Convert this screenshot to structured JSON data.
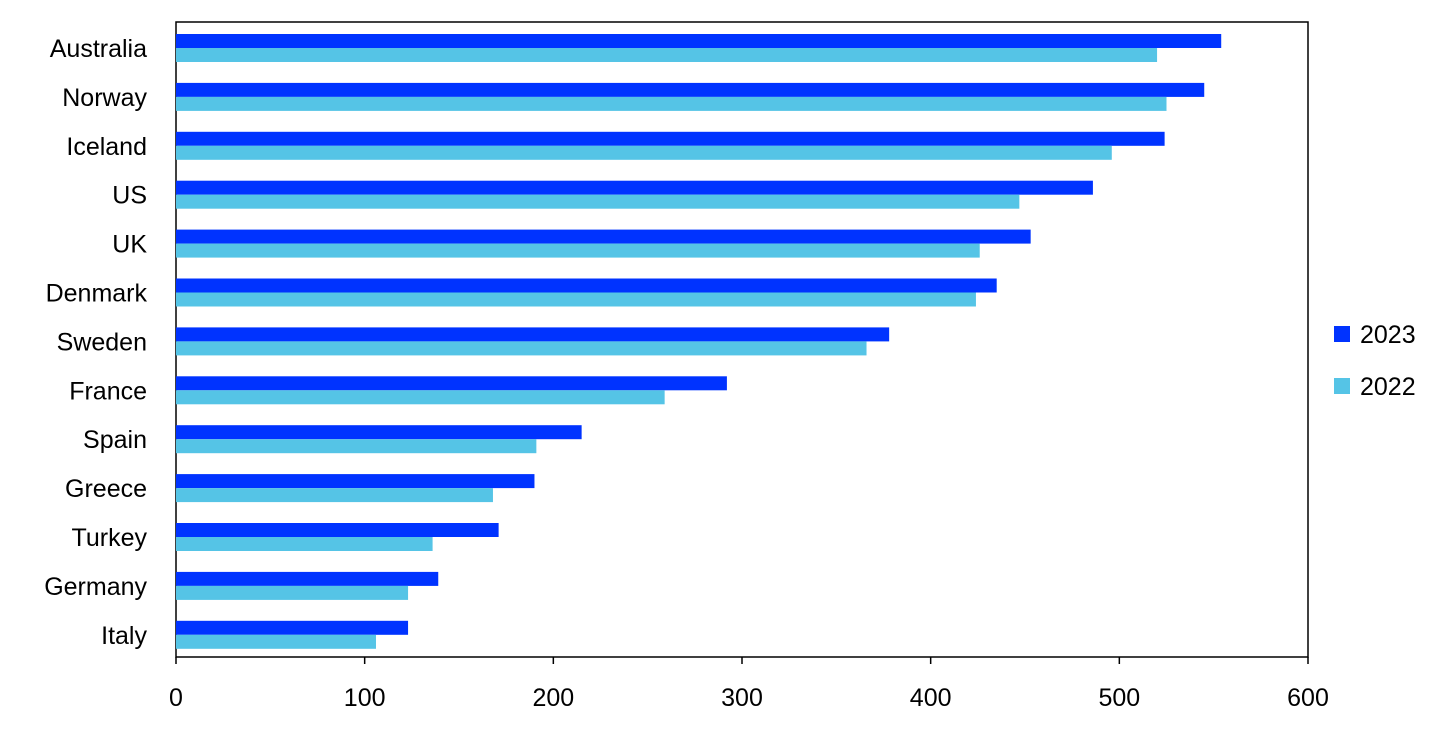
{
  "chart_data": {
    "type": "bar",
    "orientation": "horizontal",
    "categories": [
      "Australia",
      "Norway",
      "Iceland",
      "US",
      "UK",
      "Denmark",
      "Sweden",
      "France",
      "Spain",
      "Greece",
      "Turkey",
      "Germany",
      "Italy"
    ],
    "series": [
      {
        "name": "2023",
        "color": "#0033ff",
        "values": [
          554,
          545,
          524,
          486,
          453,
          435,
          378,
          292,
          215,
          190,
          171,
          139,
          123
        ]
      },
      {
        "name": "2022",
        "color": "#55c4e6",
        "values": [
          520,
          525,
          496,
          447,
          426,
          424,
          366,
          259,
          191,
          168,
          136,
          123,
          106
        ]
      }
    ],
    "xlim": [
      0,
      600
    ],
    "xticks": [
      "0",
      "100",
      "200",
      "300",
      "400",
      "500",
      "600"
    ],
    "grid": false,
    "legend_position": "right"
  }
}
